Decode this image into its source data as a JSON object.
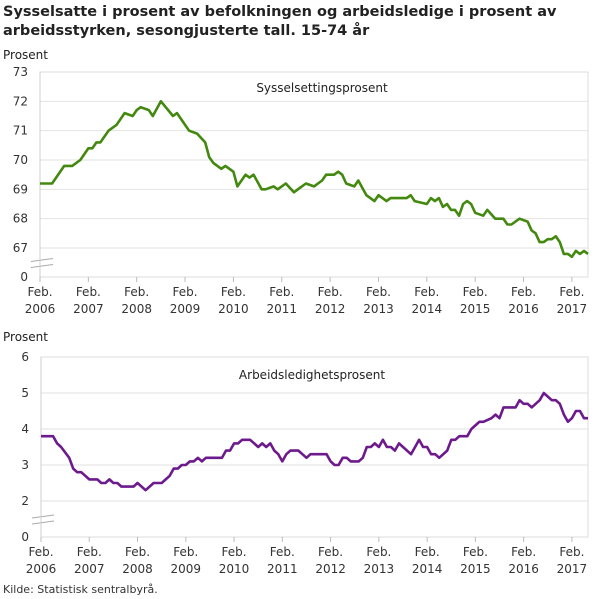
{
  "title": "Sysselsatte  i prosent av befolkningen og arbeidsledige i prosent av arbeidsstyrken, sesongjusterte tall. 15-74 år",
  "source": "Kilde: Statistisk sentralbyrå.",
  "chart_data": [
    {
      "type": "line",
      "title": "Sysselsettingsprosent",
      "ylabel": "Prosent",
      "yticks": [
        0,
        67,
        68,
        69,
        70,
        71,
        72,
        73
      ],
      "ylim": [
        67,
        73
      ],
      "axis_break": true,
      "xlim": [
        "2006-02",
        "2017-06"
      ],
      "xticks": [
        {
          "at": "2006-02",
          "label": [
            "Feb.",
            "2006"
          ]
        },
        {
          "at": "2007-02",
          "label": [
            "Feb.",
            "2007"
          ]
        },
        {
          "at": "2008-02",
          "label": [
            "Feb.",
            "2008"
          ]
        },
        {
          "at": "2009-02",
          "label": [
            "Feb.",
            "2009"
          ]
        },
        {
          "at": "2010-02",
          "label": [
            "Feb.",
            "2010"
          ]
        },
        {
          "at": "2011-02",
          "label": [
            "Feb.",
            "2011"
          ]
        },
        {
          "at": "2012-02",
          "label": [
            "Feb.",
            "2012"
          ]
        },
        {
          "at": "2013-02",
          "label": [
            "Feb.",
            "2013"
          ]
        },
        {
          "at": "2014-02",
          "label": [
            "Feb.",
            "2014"
          ]
        },
        {
          "at": "2015-02",
          "label": [
            "Feb.",
            "2015"
          ]
        },
        {
          "at": "2016-02",
          "label": [
            "Feb.",
            "2016"
          ]
        },
        {
          "at": "2017-02",
          "label": [
            "Feb.",
            "2017"
          ]
        }
      ],
      "grid": true,
      "color": "#43880f",
      "points": [
        [
          "2006-02",
          69.2
        ],
        [
          "2006-05",
          69.2
        ],
        [
          "2006-08",
          69.8
        ],
        [
          "2006-10",
          69.8
        ],
        [
          "2006-12",
          70.0
        ],
        [
          "2007-02",
          70.4
        ],
        [
          "2007-03",
          70.4
        ],
        [
          "2007-04",
          70.6
        ],
        [
          "2007-05",
          70.6
        ],
        [
          "2007-07",
          71.0
        ],
        [
          "2007-09",
          71.2
        ],
        [
          "2007-11",
          71.6
        ],
        [
          "2008-01",
          71.5
        ],
        [
          "2008-02",
          71.7
        ],
        [
          "2008-03",
          71.8
        ],
        [
          "2008-05",
          71.7
        ],
        [
          "2008-06",
          71.5
        ],
        [
          "2008-08",
          72.0
        ],
        [
          "2008-11",
          71.5
        ],
        [
          "2008-12",
          71.6
        ],
        [
          "2009-03",
          71.0
        ],
        [
          "2009-05",
          70.9
        ],
        [
          "2009-07",
          70.6
        ],
        [
          "2009-08",
          70.1
        ],
        [
          "2009-09",
          69.9
        ],
        [
          "2009-11",
          69.7
        ],
        [
          "2009-12",
          69.8
        ],
        [
          "2010-02",
          69.6
        ],
        [
          "2010-03",
          69.1
        ],
        [
          "2010-05",
          69.5
        ],
        [
          "2010-06",
          69.4
        ],
        [
          "2010-07",
          69.5
        ],
        [
          "2010-09",
          69.0
        ],
        [
          "2010-10",
          69.0
        ],
        [
          "2010-12",
          69.1
        ],
        [
          "2011-01",
          69.0
        ],
        [
          "2011-03",
          69.2
        ],
        [
          "2011-05",
          68.9
        ],
        [
          "2011-06",
          69.0
        ],
        [
          "2011-08",
          69.2
        ],
        [
          "2011-10",
          69.1
        ],
        [
          "2011-12",
          69.3
        ],
        [
          "2012-01",
          69.5
        ],
        [
          "2012-03",
          69.5
        ],
        [
          "2012-04",
          69.6
        ],
        [
          "2012-05",
          69.5
        ],
        [
          "2012-06",
          69.2
        ],
        [
          "2012-08",
          69.1
        ],
        [
          "2012-09",
          69.3
        ],
        [
          "2012-11",
          68.8
        ],
        [
          "2013-01",
          68.6
        ],
        [
          "2013-02",
          68.8
        ],
        [
          "2013-04",
          68.6
        ],
        [
          "2013-05",
          68.7
        ],
        [
          "2013-09",
          68.7
        ],
        [
          "2013-10",
          68.8
        ],
        [
          "2013-11",
          68.6
        ],
        [
          "2014-02",
          68.5
        ],
        [
          "2014-03",
          68.7
        ],
        [
          "2014-04",
          68.6
        ],
        [
          "2014-05",
          68.7
        ],
        [
          "2014-06",
          68.4
        ],
        [
          "2014-07",
          68.5
        ],
        [
          "2014-08",
          68.3
        ],
        [
          "2014-09",
          68.3
        ],
        [
          "2014-10",
          68.1
        ],
        [
          "2014-11",
          68.5
        ],
        [
          "2014-12",
          68.6
        ],
        [
          "2015-01",
          68.5
        ],
        [
          "2015-02",
          68.2
        ],
        [
          "2015-04",
          68.1
        ],
        [
          "2015-05",
          68.3
        ],
        [
          "2015-07",
          68.0
        ],
        [
          "2015-09",
          68.0
        ],
        [
          "2015-10",
          67.8
        ],
        [
          "2015-11",
          67.8
        ],
        [
          "2016-01",
          68.0
        ],
        [
          "2016-03",
          67.9
        ],
        [
          "2016-04",
          67.6
        ],
        [
          "2016-05",
          67.5
        ],
        [
          "2016-06",
          67.2
        ],
        [
          "2016-07",
          67.2
        ],
        [
          "2016-08",
          67.3
        ],
        [
          "2016-09",
          67.3
        ],
        [
          "2016-10",
          67.4
        ],
        [
          "2016-11",
          67.2
        ],
        [
          "2016-12",
          66.8
        ],
        [
          "2017-01",
          66.8
        ],
        [
          "2017-02",
          66.7
        ],
        [
          "2017-03",
          66.9
        ],
        [
          "2017-04",
          66.8
        ],
        [
          "2017-05",
          66.9
        ],
        [
          "2017-06",
          66.8
        ]
      ]
    },
    {
      "type": "line",
      "title": "Arbeidsledighetsprosent",
      "ylabel": "Prosent",
      "yticks": [
        0,
        2,
        3,
        4,
        5,
        6
      ],
      "ylim": [
        2,
        6
      ],
      "axis_break": true,
      "xlim": [
        "2006-02",
        "2017-06"
      ],
      "xticks": [
        {
          "at": "2006-02",
          "label": [
            "Feb.",
            "2006"
          ]
        },
        {
          "at": "2007-02",
          "label": [
            "Feb.",
            "2007"
          ]
        },
        {
          "at": "2008-02",
          "label": [
            "Feb.",
            "2008"
          ]
        },
        {
          "at": "2009-02",
          "label": [
            "Feb.",
            "2009"
          ]
        },
        {
          "at": "2010-02",
          "label": [
            "Feb.",
            "2010"
          ]
        },
        {
          "at": "2011-02",
          "label": [
            "Feb.",
            "2011"
          ]
        },
        {
          "at": "2012-02",
          "label": [
            "Feb.",
            "2012"
          ]
        },
        {
          "at": "2013-02",
          "label": [
            "Feb.",
            "2013"
          ]
        },
        {
          "at": "2014-02",
          "label": [
            "Feb.",
            "2014"
          ]
        },
        {
          "at": "2015-02",
          "label": [
            "Feb.",
            "2015"
          ]
        },
        {
          "at": "2016-02",
          "label": [
            "Feb.",
            "2016"
          ]
        },
        {
          "at": "2017-02",
          "label": [
            "Feb.",
            "2017"
          ]
        }
      ],
      "grid": true,
      "color": "#6d1a8c",
      "points": [
        [
          "2006-02",
          3.8
        ],
        [
          "2006-05",
          3.8
        ],
        [
          "2006-06",
          3.6
        ],
        [
          "2006-07",
          3.5
        ],
        [
          "2006-09",
          3.2
        ],
        [
          "2006-10",
          2.9
        ],
        [
          "2006-11",
          2.8
        ],
        [
          "2006-12",
          2.8
        ],
        [
          "2007-02",
          2.6
        ],
        [
          "2007-04",
          2.6
        ],
        [
          "2007-05",
          2.5
        ],
        [
          "2007-06",
          2.5
        ],
        [
          "2007-07",
          2.6
        ],
        [
          "2007-08",
          2.5
        ],
        [
          "2007-09",
          2.5
        ],
        [
          "2007-10",
          2.4
        ],
        [
          "2008-01",
          2.4
        ],
        [
          "2008-02",
          2.5
        ],
        [
          "2008-03",
          2.4
        ],
        [
          "2008-04",
          2.3
        ],
        [
          "2008-06",
          2.5
        ],
        [
          "2008-08",
          2.5
        ],
        [
          "2008-09",
          2.6
        ],
        [
          "2008-10",
          2.7
        ],
        [
          "2008-11",
          2.9
        ],
        [
          "2008-12",
          2.9
        ],
        [
          "2009-01",
          3.0
        ],
        [
          "2009-02",
          3.0
        ],
        [
          "2009-03",
          3.1
        ],
        [
          "2009-04",
          3.1
        ],
        [
          "2009-05",
          3.2
        ],
        [
          "2009-06",
          3.1
        ],
        [
          "2009-07",
          3.2
        ],
        [
          "2009-11",
          3.2
        ],
        [
          "2009-12",
          3.4
        ],
        [
          "2010-01",
          3.4
        ],
        [
          "2010-02",
          3.6
        ],
        [
          "2010-03",
          3.6
        ],
        [
          "2010-04",
          3.7
        ],
        [
          "2010-06",
          3.7
        ],
        [
          "2010-07",
          3.6
        ],
        [
          "2010-08",
          3.5
        ],
        [
          "2010-09",
          3.6
        ],
        [
          "2010-10",
          3.5
        ],
        [
          "2010-11",
          3.6
        ],
        [
          "2010-12",
          3.4
        ],
        [
          "2011-01",
          3.3
        ],
        [
          "2011-02",
          3.1
        ],
        [
          "2011-03",
          3.3
        ],
        [
          "2011-04",
          3.4
        ],
        [
          "2011-06",
          3.4
        ],
        [
          "2011-07",
          3.3
        ],
        [
          "2011-08",
          3.2
        ],
        [
          "2011-09",
          3.3
        ],
        [
          "2012-01",
          3.3
        ],
        [
          "2012-02",
          3.1
        ],
        [
          "2012-03",
          3.0
        ],
        [
          "2012-04",
          3.0
        ],
        [
          "2012-05",
          3.2
        ],
        [
          "2012-06",
          3.2
        ],
        [
          "2012-07",
          3.1
        ],
        [
          "2012-09",
          3.1
        ],
        [
          "2012-10",
          3.2
        ],
        [
          "2012-11",
          3.5
        ],
        [
          "2012-12",
          3.5
        ],
        [
          "2013-01",
          3.6
        ],
        [
          "2013-02",
          3.5
        ],
        [
          "2013-03",
          3.7
        ],
        [
          "2013-04",
          3.5
        ],
        [
          "2013-05",
          3.5
        ],
        [
          "2013-06",
          3.4
        ],
        [
          "2013-07",
          3.6
        ],
        [
          "2013-08",
          3.5
        ],
        [
          "2013-10",
          3.3
        ],
        [
          "2013-11",
          3.5
        ],
        [
          "2013-12",
          3.7
        ],
        [
          "2014-01",
          3.5
        ],
        [
          "2014-02",
          3.5
        ],
        [
          "2014-03",
          3.3
        ],
        [
          "2014-04",
          3.3
        ],
        [
          "2014-05",
          3.2
        ],
        [
          "2014-07",
          3.4
        ],
        [
          "2014-08",
          3.7
        ],
        [
          "2014-09",
          3.7
        ],
        [
          "2014-10",
          3.8
        ],
        [
          "2014-12",
          3.8
        ],
        [
          "2015-01",
          4.0
        ],
        [
          "2015-02",
          4.1
        ],
        [
          "2015-03",
          4.2
        ],
        [
          "2015-04",
          4.2
        ],
        [
          "2015-06",
          4.3
        ],
        [
          "2015-07",
          4.4
        ],
        [
          "2015-08",
          4.3
        ],
        [
          "2015-09",
          4.6
        ],
        [
          "2015-12",
          4.6
        ],
        [
          "2016-01",
          4.8
        ],
        [
          "2016-02",
          4.7
        ],
        [
          "2016-03",
          4.7
        ],
        [
          "2016-04",
          4.6
        ],
        [
          "2016-05",
          4.7
        ],
        [
          "2016-06",
          4.8
        ],
        [
          "2016-07",
          5.0
        ],
        [
          "2016-08",
          4.9
        ],
        [
          "2016-09",
          4.8
        ],
        [
          "2016-10",
          4.8
        ],
        [
          "2016-11",
          4.7
        ],
        [
          "2016-12",
          4.4
        ],
        [
          "2017-01",
          4.2
        ],
        [
          "2017-02",
          4.3
        ],
        [
          "2017-03",
          4.5
        ],
        [
          "2017-04",
          4.5
        ],
        [
          "2017-05",
          4.3
        ],
        [
          "2017-06",
          4.3
        ]
      ]
    }
  ]
}
